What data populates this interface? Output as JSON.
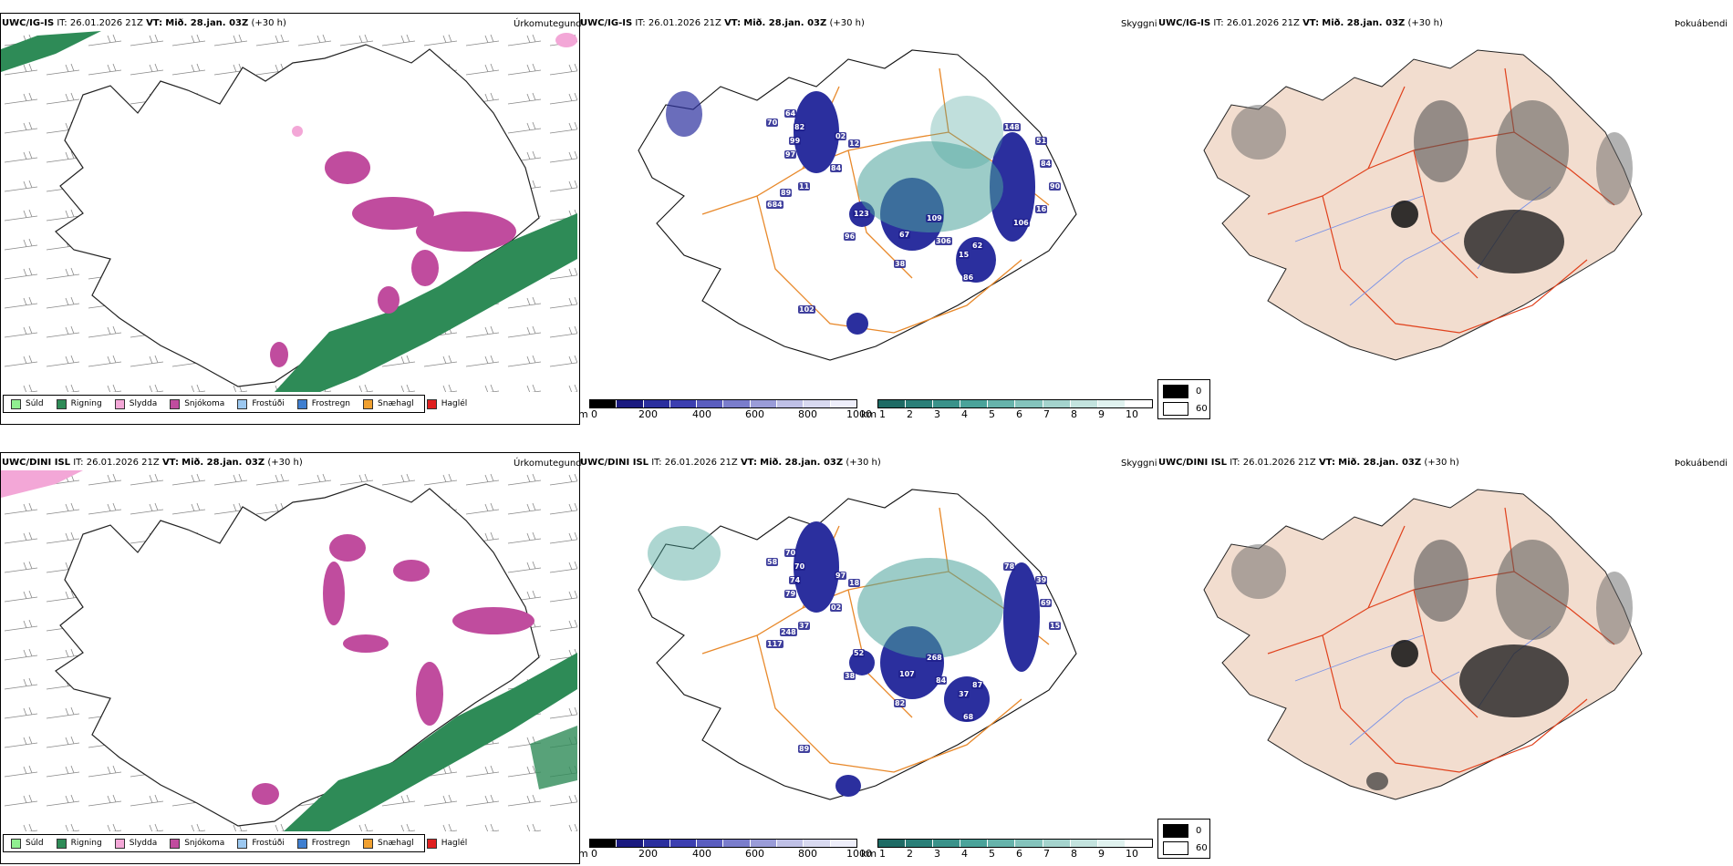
{
  "colors": {
    "sea": "#ffffff",
    "land_fill_1": "#ffffff",
    "land_fill_3": "#f2ddcf",
    "coast": "#111111",
    "road_orange": "#e8892b",
    "road_red": "#e0411c",
    "river_blue": "#7a92e6",
    "rain_green": "#2e8b57",
    "snow_magenta": "#c04c9e",
    "sleet_pink": "#f3a7d7",
    "cloud_blue": "#2b2f9e",
    "vis_teal": "#4aa39a",
    "fog_dark": "#555555"
  },
  "rows": [
    {
      "id": "ig-is",
      "precip": {
        "model": "UWC/IG-IS",
        "it_label": "IT:",
        "it_value": "26.01.2026 21Z",
        "vt_label": "VT:",
        "vt_value": "Mið. 28.jan. 03Z",
        "lead": "(+30 h)",
        "field": "Úrkomutegund",
        "legend": [
          {
            "label": "Súld",
            "color": "#90ee90"
          },
          {
            "label": "Rigning",
            "color": "#2e8b57"
          },
          {
            "label": "Slydda",
            "color": "#f3a7d7"
          },
          {
            "label": "Snjókoma",
            "color": "#c04c9e"
          },
          {
            "label": "Frostúði",
            "color": "#9cc8f0"
          },
          {
            "label": "Frostregn",
            "color": "#3f7fd0"
          },
          {
            "label": "Snæhagl",
            "color": "#f0a030"
          },
          {
            "label": "Haglél",
            "color": "#e02020"
          }
        ]
      },
      "cloud": {
        "model": "UWC/IG-IS",
        "it_label": "IT:",
        "it_value": "26.01.2026 21Z",
        "vt_label": "VT:",
        "vt_value": "Mið. 28.jan. 03Z",
        "lead": "(+30 h)",
        "field": "Skyggni",
        "markers": [
          "64",
          "70",
          "82",
          "99",
          "97",
          "02",
          "12",
          "84",
          "11",
          "89",
          "684",
          "123",
          "96",
          "67",
          "109",
          "306",
          "62",
          "15",
          "86",
          "38",
          "102",
          "148",
          "51",
          "84",
          "90",
          "16",
          "106"
        ],
        "base_unit": "m",
        "base_ticks": [
          "0",
          "200",
          "400",
          "600",
          "800",
          "1000"
        ],
        "vis_unit": "km",
        "vis_ticks": [
          "1",
          "2",
          "3",
          "4",
          "5",
          "6",
          "7",
          "8",
          "9",
          "10"
        ]
      },
      "fog": {
        "model": "UWC/IG-IS",
        "it_label": "IT:",
        "it_value": "26.01.2026 21Z",
        "vt_label": "VT:",
        "vt_value": "Mið. 28.jan. 03Z",
        "lead": "(+30 h)",
        "field": "Þokuábendi",
        "key": [
          "0",
          "60"
        ]
      }
    },
    {
      "id": "dini-isl",
      "precip": {
        "model": "UWC/DINI ISL",
        "it_label": "IT:",
        "it_value": "26.01.2026 21Z",
        "vt_label": "VT:",
        "vt_value": "Mið. 28.jan. 03Z",
        "lead": "(+30 h)",
        "field": "Úrkomutegund",
        "legend": [
          {
            "label": "Súld",
            "color": "#90ee90"
          },
          {
            "label": "Rigning",
            "color": "#2e8b57"
          },
          {
            "label": "Slydda",
            "color": "#f3a7d7"
          },
          {
            "label": "Snjókoma",
            "color": "#c04c9e"
          },
          {
            "label": "Frostúði",
            "color": "#9cc8f0"
          },
          {
            "label": "Frostregn",
            "color": "#3f7fd0"
          },
          {
            "label": "Snæhagl",
            "color": "#f0a030"
          },
          {
            "label": "Haglél",
            "color": "#e02020"
          }
        ]
      },
      "cloud": {
        "model": "UWC/DINI ISL",
        "it_label": "IT:",
        "it_value": "26.01.2026 21Z",
        "vt_label": "VT:",
        "vt_value": "Mið. 28.jan. 03Z",
        "lead": "(+30 h)",
        "field": "Skyggni",
        "markers": [
          "70",
          "58",
          "70",
          "74",
          "79",
          "97",
          "18",
          "02",
          "37",
          "248",
          "117",
          "52",
          "38",
          "107",
          "268",
          "84",
          "87",
          "37",
          "68",
          "82",
          "89",
          "78",
          "39",
          "69",
          "15"
        ],
        "base_unit": "m",
        "base_ticks": [
          "0",
          "200",
          "400",
          "600",
          "800",
          "1000"
        ],
        "vis_unit": "km",
        "vis_ticks": [
          "1",
          "2",
          "3",
          "4",
          "5",
          "6",
          "7",
          "8",
          "9",
          "10"
        ]
      },
      "fog": {
        "model": "UWC/DINI ISL",
        "it_label": "IT:",
        "it_value": "26.01.2026 21Z",
        "vt_label": "VT:",
        "vt_value": "Mið. 28.jan. 03Z",
        "lead": "(+30 h)",
        "field": "Þokuábendi",
        "key": [
          "0",
          "60"
        ]
      }
    }
  ]
}
